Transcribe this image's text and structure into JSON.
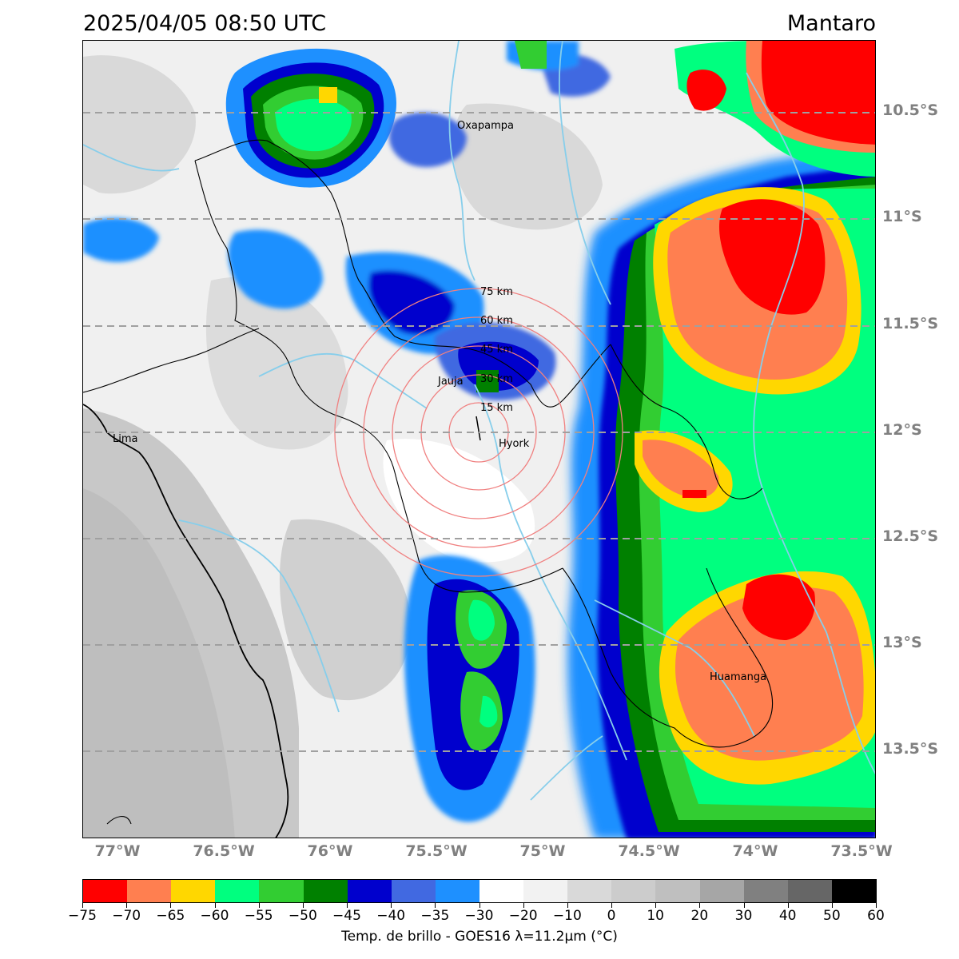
{
  "title": {
    "datetime": "2025/04/05 08:50 UTC",
    "region": "Mantaro"
  },
  "latitude_labels": [
    "10.5°S",
    "11°S",
    "11.5°S",
    "12°S",
    "12.5°S",
    "13°S",
    "13.5°S"
  ],
  "longitude_labels": [
    "77°W",
    "76.5°W",
    "76°W",
    "75.5°W",
    "75°W",
    "74.5°W",
    "74°W",
    "73.5°W"
  ],
  "places": [
    {
      "name": "Oxapampa"
    },
    {
      "name": "Jauja"
    },
    {
      "name": "Hyork"
    },
    {
      "name": "Lima"
    },
    {
      "name": "Huamanga"
    }
  ],
  "range_rings": [
    "15 km",
    "30 km",
    "45 km",
    "60 km",
    "75 km"
  ],
  "colorbar": {
    "title": "Temp. de brillo - GOES16 λ=11.2μm (°C)",
    "colors": [
      "#ff0000",
      "#ff7f50",
      "#ffd700",
      "#00ff7f",
      "#32cd32",
      "#008000",
      "#0000cd",
      "#4169e1",
      "#1e90ff",
      "#ffffff",
      "#f2f2f2",
      "#d9d9d9",
      "#cccccc",
      "#bfbfbf",
      "#a6a6a6",
      "#808080",
      "#666666",
      "#000000"
    ],
    "tick_labels": [
      "−75",
      "−70",
      "−65",
      "−60",
      "−55",
      "−50",
      "−45",
      "−40",
      "−35",
      "−30",
      "−20",
      "−10",
      "0",
      "10",
      "20",
      "30",
      "40",
      "50",
      "60"
    ]
  }
}
